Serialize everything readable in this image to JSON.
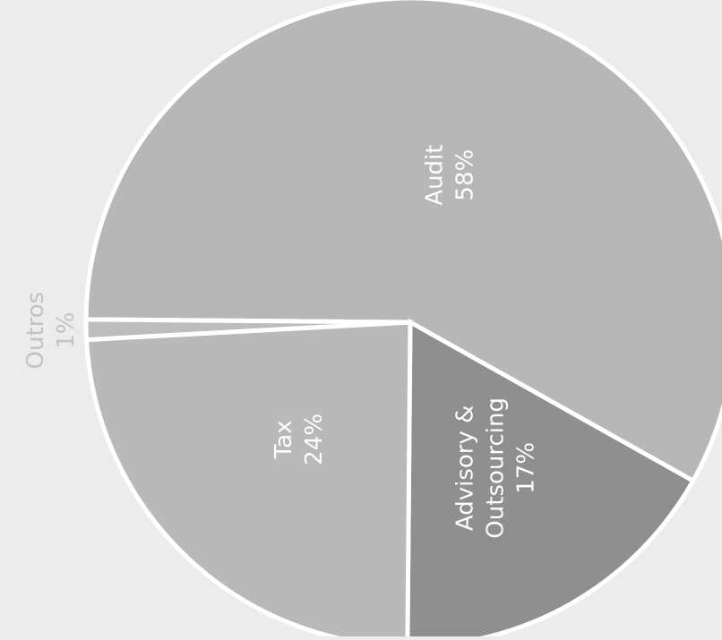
{
  "chart_data": {
    "type": "pie",
    "slices": [
      {
        "name": "Audit",
        "value": 58,
        "label": "58%",
        "color": "#b7b7b7",
        "text_color": "#ffffff"
      },
      {
        "name": "Advisory & Outsourcing",
        "value": 17,
        "label": "17%",
        "color": "#8f8f8f",
        "text_color": "#ffffff"
      },
      {
        "name": "Tax",
        "value": 24,
        "label": "24%",
        "color": "#b9b9b9",
        "text_color": "#ffffff"
      },
      {
        "name": "Outros",
        "value": 1,
        "label": "1%",
        "color": "#bdbdbd",
        "text_color": "#c2c2c2"
      }
    ],
    "text_orientation": "rotated-90-ccw",
    "slice_separator_color": "#ffffff"
  }
}
